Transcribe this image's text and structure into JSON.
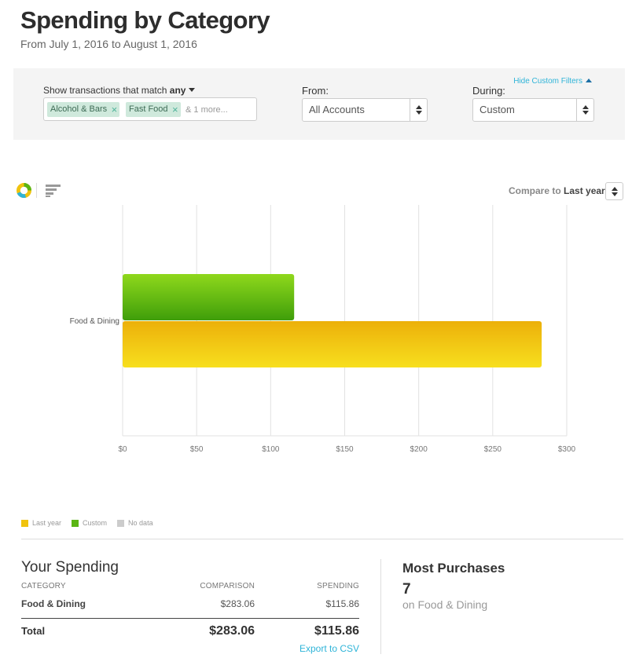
{
  "header": {
    "title": "Spending by Category",
    "subtitle": "From July 1, 2016 to August 1, 2016"
  },
  "filters": {
    "hide_label": "Hide Custom Filters",
    "match_prefix": "Show transactions that match",
    "match_mode": "any",
    "tags": [
      "Alcohol & Bars",
      "Fast Food"
    ],
    "more_text": "& 1 more...",
    "from_label": "From:",
    "from_value": "All Accounts",
    "during_label": "During:",
    "during_value": "Custom"
  },
  "chart_controls": {
    "compare_prefix": "Compare to",
    "compare_value": "Last year"
  },
  "chart_data": {
    "type": "bar",
    "orientation": "horizontal",
    "categories": [
      "Food & Dining"
    ],
    "series": [
      {
        "name": "Custom",
        "values": [
          115.86
        ],
        "color": "#5bb514"
      },
      {
        "name": "Last year",
        "values": [
          283.06
        ],
        "color": "#f0c30e"
      }
    ],
    "xlim": [
      0,
      300
    ],
    "x_ticks": [
      0,
      50,
      100,
      150,
      200,
      250,
      300
    ],
    "x_tick_labels": [
      "$0",
      "$50",
      "$100",
      "$150",
      "$200",
      "$250",
      "$300"
    ],
    "grid": true,
    "legend": [
      {
        "label": "Last year",
        "color": "#f0c30e"
      },
      {
        "label": "Custom",
        "color": "#5bb514"
      },
      {
        "label": "No data",
        "color": "#cccccc"
      }
    ]
  },
  "spending": {
    "title": "Your Spending",
    "col_category": "Category",
    "col_comparison": "Comparison",
    "col_spending": "Spending",
    "rows": [
      {
        "category": "Food & Dining",
        "comparison": "$283.06",
        "spending": "$115.86"
      }
    ],
    "total_label": "Total",
    "total_comparison": "$283.06",
    "total_spending": "$115.86",
    "export_label": "Export to CSV"
  },
  "most_purchases": {
    "title": "Most Purchases",
    "count": "7",
    "subtitle": "on Food & Dining"
  }
}
